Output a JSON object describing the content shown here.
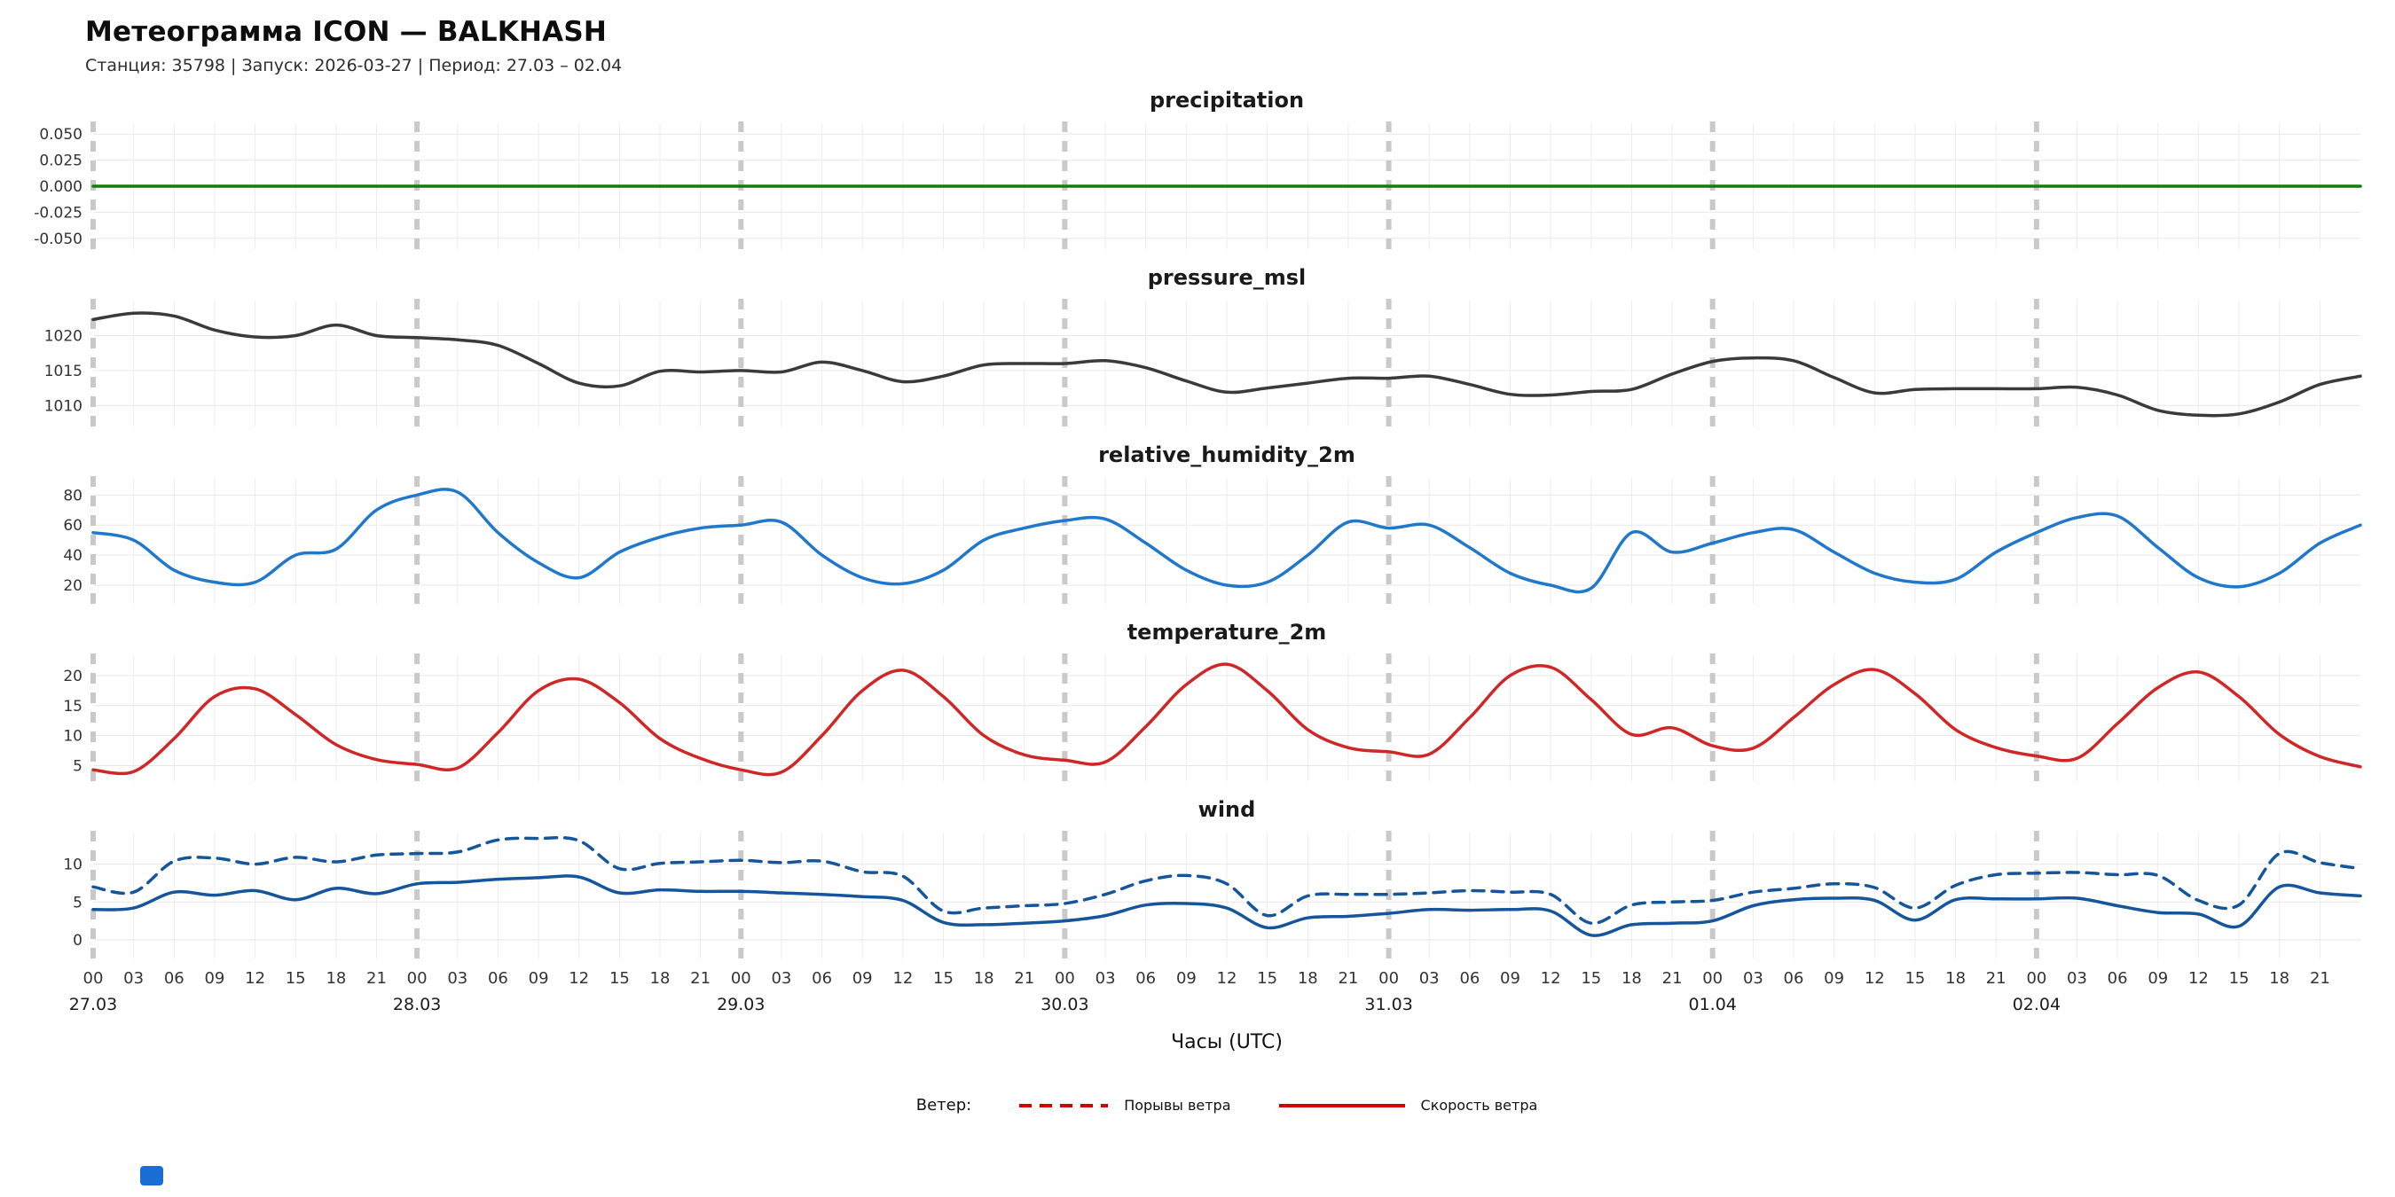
{
  "header": {
    "title": "Метеограмма ICON — BALKHASH",
    "subtitle": "Станция: 35798  | Запуск: 2026-03-27  | Период: 27.03 – 02.04"
  },
  "x_axis": {
    "xlim": [
      0,
      168
    ],
    "tick_step": 3,
    "last_tick": 165,
    "hour_label_cycle": [
      "00",
      "03",
      "06",
      "09",
      "12",
      "15",
      "18",
      "21"
    ],
    "day_labels": [
      {
        "hour": 0,
        "label": "27.03"
      },
      {
        "hour": 24,
        "label": "28.03"
      },
      {
        "hour": 48,
        "label": "29.03"
      },
      {
        "hour": 72,
        "label": "30.03"
      },
      {
        "hour": 96,
        "label": "31.03"
      },
      {
        "hour": 120,
        "label": "01.04"
      },
      {
        "hour": 144,
        "label": "02.04"
      }
    ],
    "title": "Часы (UTC)"
  },
  "legend": {
    "prefix": "Ветер:",
    "items": [
      {
        "label": "Порывы ветра",
        "style": "dashed",
        "color": "#d40000"
      },
      {
        "label": "Скорость ветра",
        "style": "solid",
        "color": "#d40000"
      }
    ]
  },
  "accents": {
    "corner_box": "#1b6ed6",
    "day_gridline": "#c9c9c9",
    "minor_gridline": "#ededed"
  },
  "chart_data": [
    {
      "type": "line",
      "title": "precipitation",
      "ylim": [
        -0.057,
        0.057
      ],
      "yticks": [
        0.05,
        0.025,
        0.0,
        -0.025,
        -0.05
      ],
      "ytick_labels": [
        "0.050",
        "0.025",
        "0.000",
        "-0.025",
        "-0.050"
      ],
      "series": [
        {
          "name": "precipitation",
          "color": "#0e7f0e",
          "dash": false,
          "width": 3.5,
          "values": [
            0,
            0,
            0,
            0,
            0,
            0,
            0,
            0,
            0,
            0,
            0,
            0,
            0,
            0,
            0,
            0,
            0,
            0,
            0,
            0,
            0,
            0,
            0,
            0,
            0,
            0,
            0,
            0,
            0,
            0,
            0,
            0,
            0,
            0,
            0,
            0,
            0,
            0,
            0,
            0,
            0,
            0,
            0,
            0,
            0,
            0,
            0,
            0,
            0,
            0,
            0,
            0,
            0,
            0,
            0,
            0,
            0
          ]
        }
      ]
    },
    {
      "type": "line",
      "title": "pressure_msl",
      "ylim": [
        1007.5,
        1024.5
      ],
      "yticks": [
        1020,
        1015,
        1010
      ],
      "ytick_labels": [
        "1020",
        "1015",
        "1010"
      ],
      "series": [
        {
          "name": "pressure_msl",
          "color": "#3a3a3a",
          "dash": false,
          "width": 3.5,
          "values": [
            1022.3,
            1023.2,
            1022.8,
            1020.8,
            1019.8,
            1020.0,
            1021.5,
            1020.0,
            1019.7,
            1019.4,
            1018.6,
            1016.0,
            1013.2,
            1012.8,
            1014.9,
            1014.8,
            1015.0,
            1014.8,
            1016.2,
            1015.0,
            1013.4,
            1014.2,
            1015.8,
            1016.0,
            1016.0,
            1016.4,
            1015.4,
            1013.5,
            1011.9,
            1012.5,
            1013.2,
            1013.9,
            1013.9,
            1014.2,
            1013.0,
            1011.6,
            1011.5,
            1012.0,
            1012.3,
            1014.5,
            1016.3,
            1016.8,
            1016.4,
            1014.0,
            1011.8,
            1012.3,
            1012.4,
            1012.4,
            1012.4,
            1012.6,
            1011.5,
            1009.3,
            1008.6,
            1008.8,
            1010.5,
            1013.0,
            1014.2
          ]
        }
      ]
    },
    {
      "type": "line",
      "title": "relative_humidity_2m",
      "ylim": [
        10,
        89
      ],
      "yticks": [
        80,
        60,
        40,
        20
      ],
      "ytick_labels": [
        "80",
        "60",
        "40",
        "20"
      ],
      "series": [
        {
          "name": "relative_humidity_2m",
          "color": "#1f78cc",
          "dash": false,
          "width": 3.5,
          "values": [
            55,
            50,
            30,
            22,
            22,
            40,
            44,
            70,
            80,
            82,
            55,
            35,
            25,
            42,
            52,
            58,
            60,
            62,
            40,
            25,
            21,
            30,
            50,
            58,
            63,
            64,
            48,
            30,
            20,
            22,
            40,
            62,
            58,
            60,
            45,
            28,
            20,
            18,
            55,
            42,
            48,
            55,
            57,
            42,
            28,
            22,
            24,
            42,
            55,
            65,
            66,
            45,
            25,
            19,
            28,
            48,
            60
          ]
        }
      ]
    },
    {
      "type": "line",
      "title": "temperature_2m",
      "ylim": [
        3,
        22.8
      ],
      "yticks": [
        20,
        15,
        10,
        5
      ],
      "ytick_labels": [
        "20",
        "15",
        "10",
        "5"
      ],
      "series": [
        {
          "name": "temperature_2m",
          "color": "#d02626",
          "dash": false,
          "width": 3.5,
          "values": [
            4.3,
            4.0,
            9.5,
            16.5,
            17.8,
            13.5,
            8.5,
            6.0,
            5.2,
            4.6,
            10.5,
            17.5,
            19.4,
            15.5,
            9.5,
            6.2,
            4.3,
            3.9,
            10.0,
            17.5,
            20.9,
            16.5,
            10.0,
            6.8,
            5.9,
            5.6,
            11.5,
            18.5,
            21.9,
            17.5,
            11.0,
            8.0,
            7.3,
            6.9,
            13.0,
            20.0,
            21.4,
            16.0,
            10.2,
            11.3,
            8.3,
            7.9,
            13.0,
            18.5,
            21.0,
            17.0,
            11.0,
            8.0,
            6.6,
            6.2,
            12.0,
            18.0,
            20.6,
            16.5,
            10.2,
            6.5,
            4.8
          ]
        }
      ]
    },
    {
      "type": "line",
      "title": "wind",
      "ylim": [
        -2,
        13.7
      ],
      "yticks": [
        10,
        5,
        0
      ],
      "ytick_labels": [
        "10",
        "5",
        "0"
      ],
      "series": [
        {
          "name": "wind_gusts",
          "color": "#14559c",
          "dash": true,
          "width": 3.5,
          "values": [
            7.0,
            6.3,
            10.4,
            10.8,
            10.0,
            10.9,
            10.3,
            11.2,
            11.4,
            11.6,
            13.2,
            13.4,
            13.1,
            9.4,
            10.1,
            10.3,
            10.5,
            10.2,
            10.4,
            9.0,
            8.4,
            3.8,
            4.2,
            4.5,
            4.8,
            6.0,
            7.8,
            8.5,
            7.4,
            3.2,
            5.8,
            6.0,
            6.0,
            6.2,
            6.5,
            6.3,
            6.0,
            2.2,
            4.6,
            5.0,
            5.2,
            6.3,
            6.8,
            7.4,
            6.9,
            4.2,
            7.2,
            8.6,
            8.8,
            8.9,
            8.6,
            8.5,
            5.2,
            4.6,
            11.4,
            10.2,
            9.4
          ]
        },
        {
          "name": "wind_speed",
          "color": "#14559c",
          "dash": false,
          "width": 3.5,
          "values": [
            4.0,
            4.2,
            6.3,
            5.9,
            6.5,
            5.3,
            6.8,
            6.1,
            7.4,
            7.6,
            8.0,
            8.2,
            8.3,
            6.2,
            6.6,
            6.4,
            6.4,
            6.2,
            6.0,
            5.7,
            5.2,
            2.3,
            2.0,
            2.2,
            2.5,
            3.2,
            4.6,
            4.8,
            4.2,
            1.6,
            2.9,
            3.1,
            3.5,
            4.0,
            3.9,
            4.0,
            3.8,
            0.6,
            2.0,
            2.2,
            2.5,
            4.5,
            5.3,
            5.5,
            5.2,
            2.6,
            5.3,
            5.4,
            5.4,
            5.5,
            4.5,
            3.6,
            3.4,
            1.8,
            7.0,
            6.2,
            5.8
          ]
        }
      ]
    }
  ]
}
